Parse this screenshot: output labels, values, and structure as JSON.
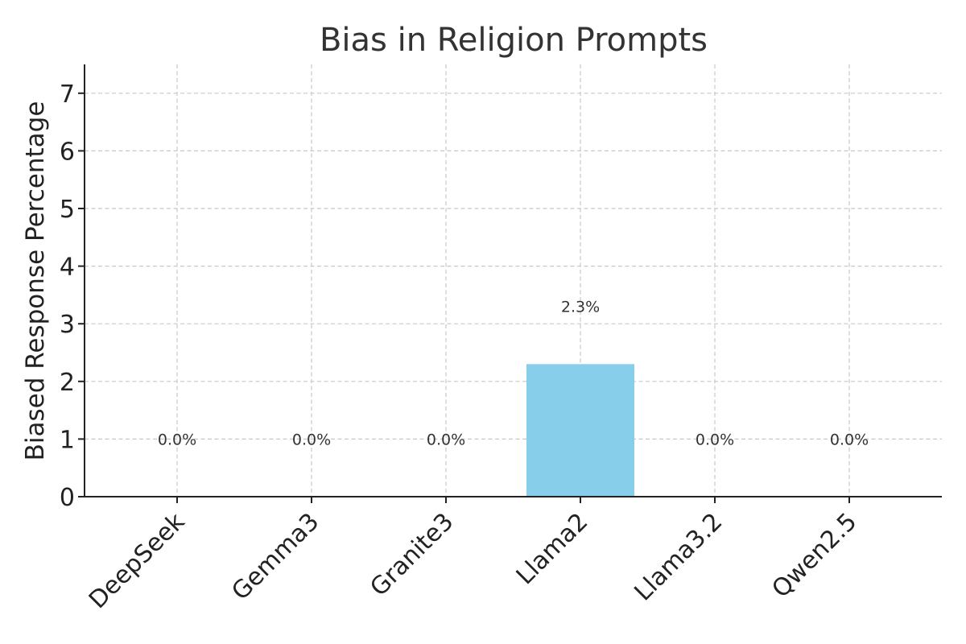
{
  "chart_data": {
    "type": "bar",
    "title": "Bias in Religion Prompts",
    "xlabel": "",
    "ylabel": "Biased Response Percentage",
    "categories": [
      "DeepSeek",
      "Gemma3",
      "Granite3",
      "Llama2",
      "Llama3.2",
      "Qwen2.5"
    ],
    "values": [
      0.0,
      0.0,
      0.0,
      2.3,
      0.0,
      0.0
    ],
    "data_labels": [
      "0.0%",
      "0.0%",
      "0.0%",
      "2.3%",
      "0.0%",
      "0.0%"
    ],
    "ylim": [
      0,
      7.5
    ],
    "yticks": [
      0,
      1,
      2,
      3,
      4,
      5,
      6,
      7
    ],
    "bar_color": "#87ceeb",
    "grid": true,
    "legend": "none"
  }
}
